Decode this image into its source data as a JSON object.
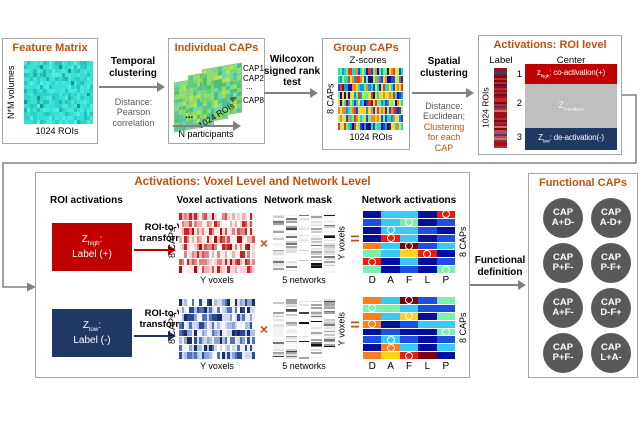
{
  "colors": {
    "accent": "#C0520E",
    "red": "#C00000",
    "navy": "#1F3864",
    "gray_box": "#BFBFBF",
    "circle": "#595959",
    "line": "#808080",
    "muted": "#595959"
  },
  "top": {
    "feature_matrix": {
      "title": "Feature Matrix",
      "ylabel": "N*M volumes",
      "xlabel": "1024 ROIs"
    },
    "arrow1": {
      "label": "Temporal clustering",
      "sub": "Distance: Pearson correlation"
    },
    "individual_caps": {
      "title": "Individual CAPs",
      "cap1": "CAP1",
      "cap2": "CAP2",
      "dots": "...",
      "cap8": "CAP8",
      "stack_dots": "...",
      "diag_label": "1024 ROIs",
      "bottom_label": "N participants"
    },
    "arrow2": {
      "label": "Wilcoxon signed rank test"
    },
    "group_caps": {
      "title": "Group CAPs",
      "top_label": "Z-scores",
      "ylabel": "8 CAPs",
      "xlabel": "1024 ROIs"
    },
    "arrow3": {
      "label": "Spatial clustering",
      "sub_gray": "Distance: Euclidean;",
      "sub_accent": "Clustering for each CAP"
    },
    "roi_level": {
      "title": "Activations: ROI level",
      "label_header": "Label",
      "center_header": "Center",
      "ylabel": "1024 ROIs",
      "rows": [
        {
          "num": "1",
          "z": "z",
          "sub": "high",
          "rest": ": co-activation(+)"
        },
        {
          "num": "2",
          "z": "Z",
          "sub": "medium",
          "rest": ""
        },
        {
          "num": "3",
          "z": "Z",
          "sub": "low",
          "rest": ": de-activation(-)"
        }
      ]
    }
  },
  "bottom": {
    "title": "Activations: Voxel Level and Network Level",
    "headers": {
      "roi": "ROI activations",
      "voxel": "Voxel activations",
      "mask": "Network mask",
      "network": "Network activations"
    },
    "times": "×",
    "equals": "=",
    "net_xticks": [
      "D",
      "A",
      "F",
      "L",
      "P"
    ],
    "rows": [
      {
        "z": "Z",
        "sub": "high",
        "colon": ":",
        "line2": "Label (+)",
        "arrow_label": "ROI-to-Voxel transformation",
        "voxel_ylabel": "8 CAPs",
        "voxel_xlabel": "Y voxels",
        "mask_xlabel": "5 networks",
        "mask_ylabel": "Y voxels",
        "net_ylabel": "8 CAPs"
      },
      {
        "z": "Z",
        "sub": "low",
        "colon": ":",
        "line2": "Label (-)",
        "arrow_label": "ROI-to-Voxel transformation",
        "voxel_ylabel": "8 CAPs",
        "voxel_xlabel": "Y voxels",
        "mask_xlabel": "5 networks",
        "mask_ylabel": "Y voxels",
        "net_ylabel": "8 CAPs"
      }
    ],
    "net_grids": {
      "high": {
        "cells": [
          "NCCNR",
          "BCGNB",
          "NCCBN",
          "NRCNB",
          "OCDBC",
          "GCYRN",
          "RNCNB",
          "GNBNG"
        ],
        "circles": [
          [
            0,
            4
          ],
          [
            1,
            2
          ],
          [
            2,
            1
          ],
          [
            3,
            1
          ],
          [
            4,
            2
          ],
          [
            5,
            3
          ],
          [
            6,
            0
          ],
          [
            7,
            4
          ]
        ]
      },
      "low": {
        "cells": [
          "OCDBG",
          "GGCBB",
          "OCYNG",
          "ONBCC",
          "NBNNG",
          "BCBNB",
          "NOCNC",
          "OYRDN"
        ],
        "circles": [
          [
            0,
            2
          ],
          [
            1,
            0
          ],
          [
            2,
            2
          ],
          [
            3,
            0
          ],
          [
            4,
            4
          ],
          [
            5,
            1
          ],
          [
            6,
            1
          ],
          [
            7,
            2
          ]
        ]
      }
    },
    "functional_definition": "Functional definition"
  },
  "functional_caps": {
    "title": "Functional CAPs",
    "items": [
      {
        "line1": "CAP",
        "line2": "A+D-"
      },
      {
        "line1": "CAP",
        "line2": "A-D+"
      },
      {
        "line1": "CAP",
        "line2": "P+F-"
      },
      {
        "line1": "CAP",
        "line2": "P-F+"
      },
      {
        "line1": "CAP",
        "line2": "A+F-"
      },
      {
        "line1": "CAP",
        "line2": "D-F+"
      },
      {
        "line1": "CAP",
        "line2": "P+F-"
      },
      {
        "line1": "CAP",
        "line2": "L+A-"
      }
    ]
  },
  "textures": {
    "feature": {
      "palette": [
        "#38DFD5",
        "#30D2C8",
        "#43E7DD",
        "#2AC4BB",
        "#4FEDE4",
        "#23B4AC",
        "#149A94"
      ],
      "weights": [
        30,
        16,
        16,
        9,
        9,
        5,
        2
      ]
    },
    "sheet": {
      "palette": [
        "#7ED768",
        "#96DE5C",
        "#5ECB82",
        "#49C9A2",
        "#B2E356",
        "#6BD4BA",
        "#8ADC74",
        "#57C06F",
        "#3FBFA9"
      ],
      "weights": [
        14,
        10,
        12,
        9,
        7,
        8,
        12,
        8,
        6
      ]
    },
    "group": {
      "palette": [
        "#0D1390",
        "#1D47E6",
        "#0D96E3",
        "#26D8C4",
        "#74EF7F",
        "#C7EF49",
        "#FFD61F",
        "#FF831F",
        "#EF3A10",
        "#8E1010"
      ],
      "weights": [
        10,
        11,
        10,
        12,
        11,
        9,
        10,
        9,
        9,
        6
      ]
    },
    "strip": {
      "palette": [
        "#9C1218",
        "#C3262C",
        "#7C0A10",
        "#B84A50",
        "#5A1E48",
        "#8C3038",
        "#D46A70",
        "#3C3C78"
      ],
      "weights": [
        16,
        14,
        12,
        8,
        5,
        8,
        6,
        4
      ]
    },
    "voxred": {
      "palette": [
        "#FFFFFF",
        "#FBECEC",
        "#F6D2D2",
        "#EEAFAF",
        "#E28383",
        "#D25454",
        "#C12626",
        "#A51111"
      ],
      "weights": [
        11,
        12,
        12,
        12,
        10,
        9,
        8,
        5
      ]
    },
    "voxblue": {
      "palette": [
        "#FFFFFF",
        "#EAEFF9",
        "#CFDAF1",
        "#AAC0E6",
        "#8AA4D6",
        "#5272B8",
        "#2A4A92",
        "#182C60"
      ],
      "weights": [
        10,
        11,
        12,
        12,
        10,
        9,
        9,
        6
      ]
    },
    "mask": {
      "palette": [
        "#FFFFFF",
        "#F3F3F3",
        "#E2E2E2",
        "#CACACA",
        "#A3A3A3",
        "#757575",
        "#454545",
        "#121212"
      ],
      "weights": [
        20,
        14,
        12,
        10,
        7,
        5,
        3,
        2
      ],
      "white_col": 2
    },
    "net_palette": {
      "N": "#000F9E",
      "B": "#1E4FE0",
      "C": "#39C9F2",
      "G": "#7BF0AE",
      "Y": "#FFD21C",
      "O": "#FF7D1E",
      "R": "#EA1C0D",
      "D": "#7E0308"
    }
  }
}
